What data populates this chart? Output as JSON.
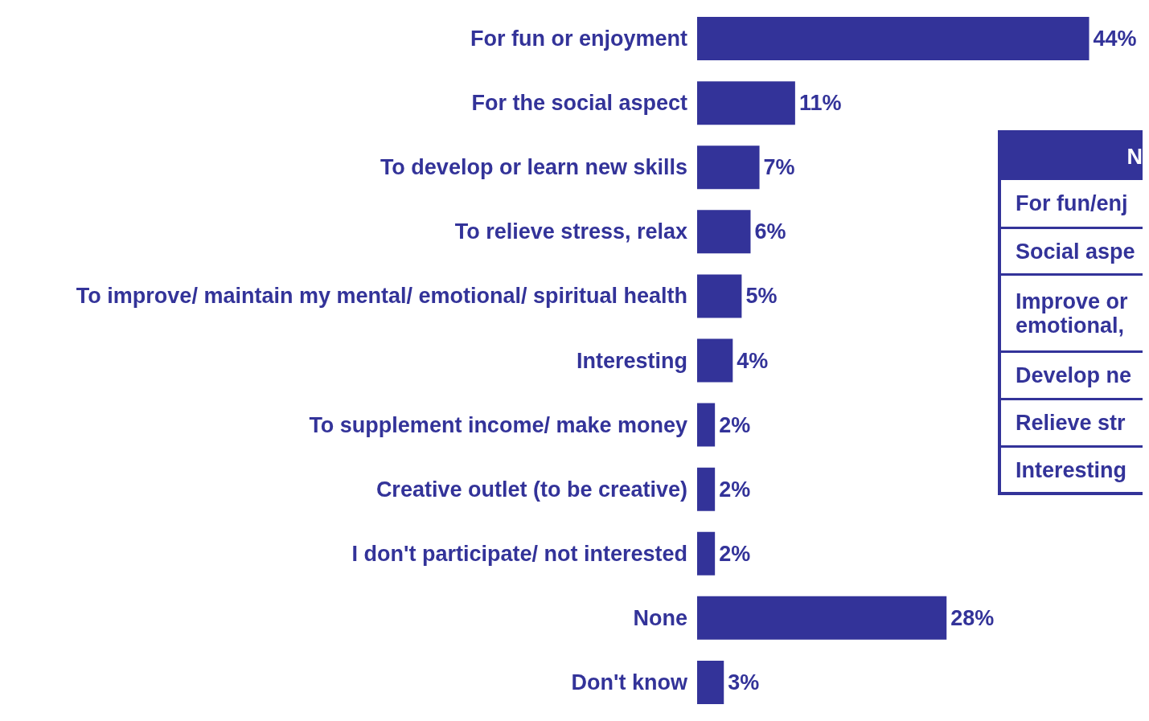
{
  "chart_data": {
    "type": "bar",
    "orientation": "horizontal",
    "categories": [
      "For fun or enjoyment",
      "For the social aspect",
      "To develop or learn new skills",
      "To relieve stress, relax",
      "To improve/ maintain my mental/ emotional/ spiritual health",
      "Interesting",
      "To supplement income/ make money",
      "Creative outlet (to be creative)",
      "I don't participate/ not interested",
      "None",
      "Don't know"
    ],
    "values": [
      44,
      11,
      7,
      6,
      5,
      4,
      2,
      2,
      2,
      28,
      3
    ],
    "value_labels": [
      "44%",
      "11%",
      "7%",
      "6%",
      "5%",
      "4%",
      "2%",
      "2%",
      "2%",
      "28%",
      "3%"
    ],
    "color": "#333399",
    "annotations": [
      "N",
      "For fun/enj",
      "Social aspe",
      "Improve or\nemotional,",
      "Develop ne",
      "Relieve str",
      "Interesting"
    ]
  }
}
